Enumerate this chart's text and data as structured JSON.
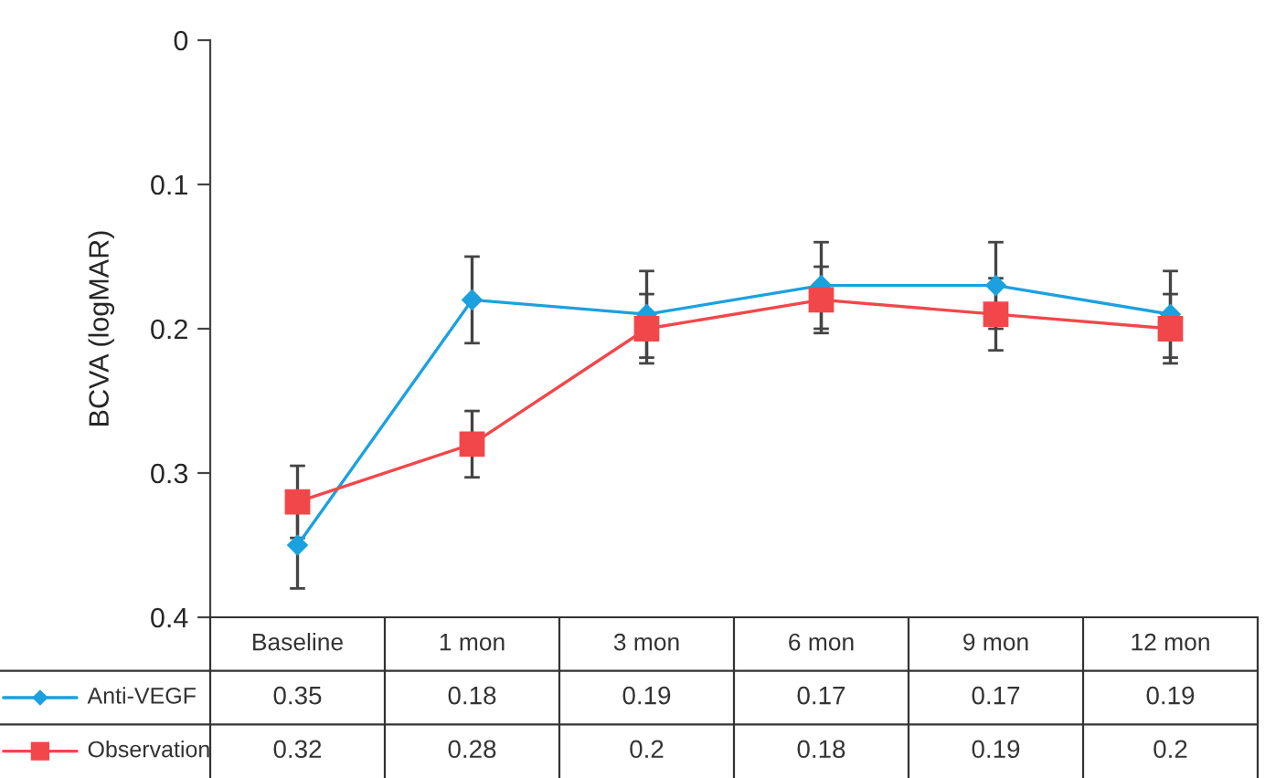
{
  "chart_data": {
    "type": "line",
    "ylabel": "BCVA (logMAR)",
    "categories": [
      "Baseline",
      "1 mon",
      "3 mon",
      "6 mon",
      "9 mon",
      "12 mon"
    ],
    "series": [
      {
        "name": "Anti-VEGF",
        "color": "#1ba1df",
        "marker": "diamond",
        "values": [
          0.35,
          0.18,
          0.19,
          0.17,
          0.17,
          0.19
        ],
        "errors": [
          0.03,
          0.03,
          0.03,
          0.03,
          0.03,
          0.03
        ]
      },
      {
        "name": "Observation",
        "color": "#f2474a",
        "marker": "square",
        "values": [
          0.32,
          0.28,
          0.2,
          0.18,
          0.19,
          0.2
        ],
        "errors": [
          0.025,
          0.023,
          0.024,
          0.023,
          0.025,
          0.024
        ]
      }
    ],
    "ylim": [
      0.4,
      0
    ],
    "yticks": [
      0,
      0.1,
      0.2,
      0.3,
      0.4
    ],
    "grid": false,
    "legend": "bottom left",
    "data_labels": true
  }
}
